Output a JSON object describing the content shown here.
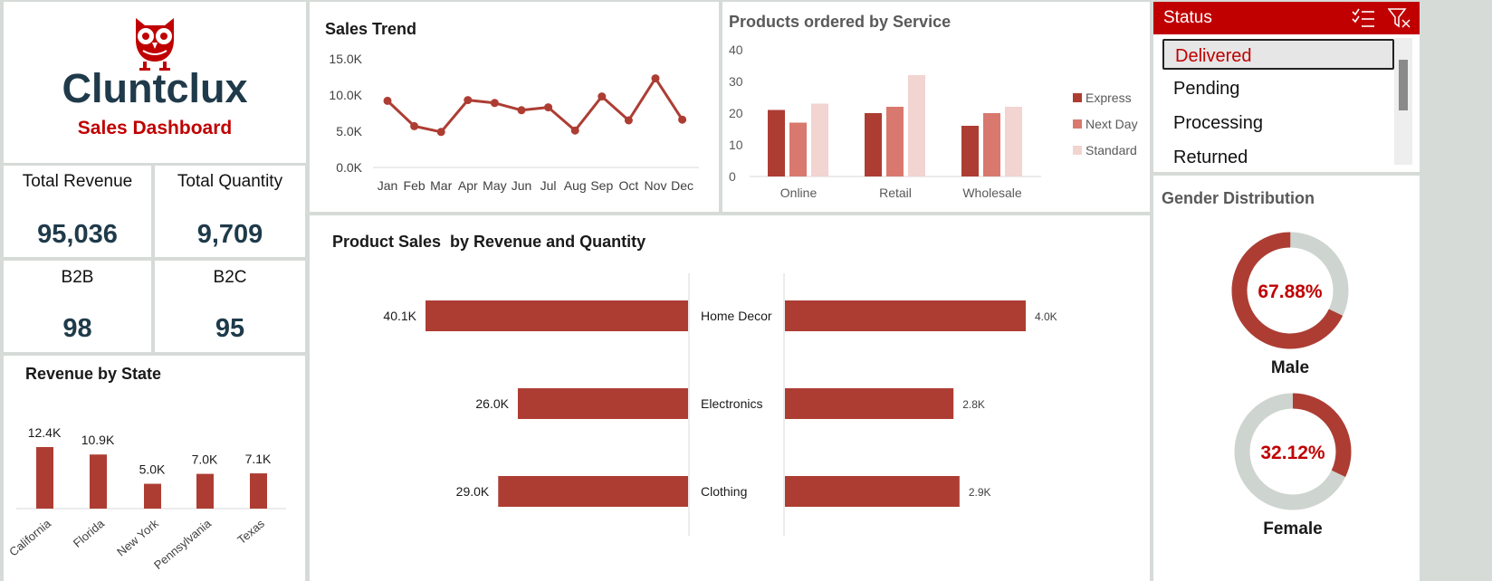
{
  "logo": {
    "brand": "Cluntclux",
    "subtitle": "Sales Dashboard",
    "icon": "owl-icon"
  },
  "kpis": [
    {
      "label": "Total Revenue",
      "value": "95,036"
    },
    {
      "label": "Total Quantity",
      "value": "9,709"
    },
    {
      "label": "B2B",
      "value": "98"
    },
    {
      "label": "B2C",
      "value": "95"
    }
  ],
  "slicer": {
    "title": "Status",
    "items": [
      "Delivered",
      "Pending",
      "Processing",
      "Returned"
    ],
    "selected": "Delivered",
    "icons": [
      "multi-select-icon",
      "clear-filter-icon"
    ]
  },
  "colors": {
    "accent": "#c00000",
    "bar": "#ad3d33",
    "bar_mid": "#d9786e",
    "bar_light": "#f2d4d1",
    "ring_bg": "#ced4cf",
    "kpi_text": "#1f3a4a"
  },
  "chart_data": [
    {
      "id": "sales_trend",
      "type": "line",
      "title": "Sales Trend",
      "categories": [
        "Jan",
        "Feb",
        "Mar",
        "Apr",
        "May",
        "Jun",
        "Jul",
        "Aug",
        "Sep",
        "Oct",
        "Nov",
        "Dec"
      ],
      "values": [
        9200,
        5700,
        4900,
        9300,
        8900,
        7900,
        8300,
        5100,
        9800,
        6500,
        12300,
        6600
      ],
      "ylim": [
        0,
        15000
      ],
      "yticks": [
        "0.0K",
        "5.0K",
        "10.0K",
        "15.0K"
      ],
      "xlabel": "",
      "ylabel": ""
    },
    {
      "id": "service",
      "type": "bar",
      "title": "Products ordered by Service",
      "categories": [
        "Online",
        "Retail",
        "Wholesale"
      ],
      "series": [
        {
          "name": "Express",
          "values": [
            21,
            20,
            16
          ]
        },
        {
          "name": "Next Day",
          "values": [
            17,
            22,
            20
          ]
        },
        {
          "name": "Standard",
          "values": [
            23,
            32,
            22
          ]
        }
      ],
      "ylim": [
        0,
        40
      ],
      "yticks": [
        "0",
        "10",
        "20",
        "30",
        "40"
      ],
      "legend": "right"
    },
    {
      "id": "state",
      "type": "bar",
      "title": "Revenue by State",
      "categories": [
        "California",
        "Florida",
        "New York",
        "Pennsylvania",
        "Texas"
      ],
      "values": [
        12400,
        10900,
        5000,
        7000,
        7100
      ],
      "labels": [
        "12.4K",
        "10.9K",
        "5.0K",
        "7.0K",
        "7.1K"
      ]
    },
    {
      "id": "product",
      "type": "bar",
      "title": "Product Sales  by Revenue and Quantity",
      "categories": [
        "Home Decor",
        "Electronics",
        "Clothing"
      ],
      "series": [
        {
          "values": [
            40100,
            26000,
            29000
          ],
          "labels": [
            "40.1K",
            "26.0K",
            "29.0K"
          ]
        },
        {
          "values": [
            4000,
            2800,
            2900
          ],
          "labels": [
            "4.0K",
            "2.8K",
            "2.9K"
          ]
        }
      ]
    },
    {
      "id": "gender",
      "type": "pie",
      "title": "Gender Distribution",
      "slices": [
        {
          "name": "Male",
          "value": 67.88,
          "label": "67.88%"
        },
        {
          "name": "Female",
          "value": 32.12,
          "label": "32.12%"
        }
      ]
    }
  ]
}
